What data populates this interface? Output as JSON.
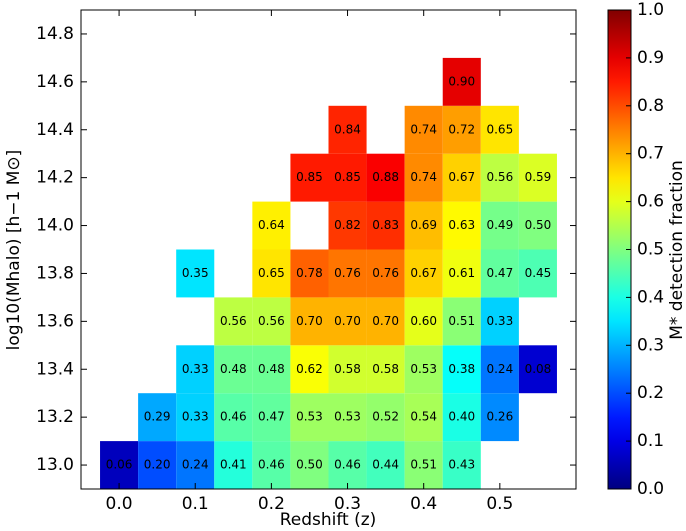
{
  "chart_data": {
    "type": "heatmap",
    "colormap": "jet",
    "xlabel": "Redshift (z)",
    "ylabel": "log10(Mhalo) [h−1 M⊙]",
    "x": [
      0,
      0.05,
      0.1,
      0.15,
      0.2,
      0.25,
      0.3,
      0.35,
      0.4,
      0.45,
      0.5,
      0.55
    ],
    "y": [
      13.0,
      13.2,
      13.4,
      13.6,
      13.8,
      14.0,
      14.2,
      14.4,
      14.6
    ],
    "values": [
      [
        0.06,
        0.2,
        0.24,
        0.41,
        0.46,
        0.5,
        0.46,
        0.44,
        0.51,
        0.43,
        null,
        null
      ],
      [
        null,
        0.29,
        0.33,
        0.46,
        0.47,
        0.53,
        0.53,
        0.52,
        0.54,
        0.4,
        0.26,
        null
      ],
      [
        null,
        null,
        0.33,
        0.48,
        0.48,
        0.62,
        0.58,
        0.58,
        0.53,
        0.38,
        0.24,
        0.08
      ],
      [
        null,
        null,
        null,
        0.56,
        0.56,
        0.7,
        0.7,
        0.7,
        0.6,
        0.51,
        0.33,
        null
      ],
      [
        null,
        null,
        0.35,
        null,
        0.65,
        0.78,
        0.76,
        0.76,
        0.67,
        0.61,
        0.47,
        0.45
      ],
      [
        null,
        null,
        null,
        null,
        0.64,
        null,
        0.82,
        0.83,
        0.69,
        0.63,
        0.49,
        0.5
      ],
      [
        null,
        null,
        null,
        null,
        null,
        0.85,
        0.85,
        0.88,
        0.74,
        0.67,
        0.56,
        0.59
      ],
      [
        null,
        null,
        null,
        null,
        null,
        null,
        0.84,
        null,
        0.74,
        0.72,
        0.65,
        null
      ],
      [
        null,
        null,
        null,
        null,
        null,
        null,
        null,
        null,
        null,
        0.9,
        null,
        null
      ]
    ],
    "value_labels": [
      [
        "0.06",
        "0.20",
        "0.24",
        "0.41",
        "0.46",
        "0.50",
        "0.46",
        "0.44",
        "0.51",
        "0.43",
        null,
        null
      ],
      [
        null,
        "0.29",
        "0.33",
        "0.46",
        "0.47",
        "0.53",
        "0.53",
        "0.52",
        "0.54",
        "0.40",
        "0.26",
        null
      ],
      [
        null,
        null,
        "0.33",
        "0.48",
        "0.48",
        "0.62",
        "0.58",
        "0.58",
        "0.53",
        "0.38",
        "0.24",
        "0.08"
      ],
      [
        null,
        null,
        null,
        "0.56",
        "0.56",
        "0.70",
        "0.70",
        "0.70",
        "0.60",
        "0.51",
        "0.33",
        null
      ],
      [
        null,
        null,
        "0.35",
        null,
        "0.65",
        "0.78",
        "0.76",
        "0.76",
        "0.67",
        "0.61",
        "0.47",
        "0.45"
      ],
      [
        null,
        null,
        null,
        null,
        "0.64",
        null,
        "0.82",
        "0.83",
        "0.69",
        "0.63",
        "0.49",
        "0.50"
      ],
      [
        null,
        null,
        null,
        null,
        null,
        "0.85",
        "0.85",
        "0.88",
        "0.74",
        "0.67",
        "0.56",
        "0.59"
      ],
      [
        null,
        null,
        null,
        null,
        null,
        null,
        "0.84",
        null,
        "0.74",
        "0.72",
        "0.65",
        null
      ],
      [
        null,
        null,
        null,
        null,
        null,
        null,
        null,
        null,
        null,
        "0.90",
        null,
        null
      ]
    ],
    "xlim": [
      -0.05,
      0.6
    ],
    "ylim": [
      12.9,
      14.9
    ],
    "xticks": [
      {
        "value": 0,
        "label": "0.0"
      },
      0.1,
      0.2,
      0.3,
      0.4,
      0.5
    ],
    "yticks": [
      {
        "value": 13,
        "label": "13.0"
      },
      13.2,
      13.4,
      13.6,
      13.8,
      {
        "value": 14,
        "label": "14.0"
      },
      14.2,
      14.4,
      14.6,
      14.8
    ],
    "colorbar": {
      "label": "M* detection fraction",
      "lim": [
        0,
        1
      ],
      "ticks": [
        {
          "value": 0,
          "label": "0.0"
        },
        0.1,
        0.2,
        0.3,
        0.4,
        0.5,
        0.6,
        0.7,
        0.8,
        0.9,
        {
          "value": 1,
          "label": "1.0"
        }
      ]
    }
  }
}
